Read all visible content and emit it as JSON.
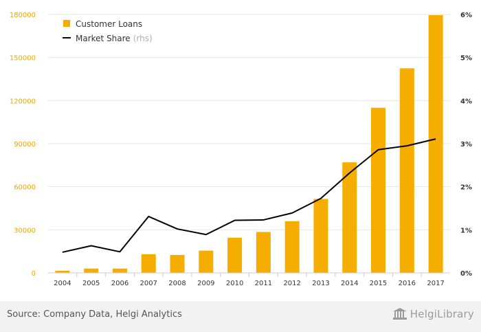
{
  "chart_data": {
    "type": "bar",
    "categories": [
      "2004",
      "2005",
      "2006",
      "2007",
      "2008",
      "2009",
      "2010",
      "2011",
      "2012",
      "2013",
      "2014",
      "2015",
      "2016",
      "2017"
    ],
    "series": [
      {
        "name": "Customer Loans",
        "type": "bar",
        "axis": "left",
        "color": "#f5ae00",
        "values": [
          1500,
          3000,
          3000,
          13000,
          12500,
          15500,
          24500,
          28500,
          36000,
          51500,
          77000,
          115000,
          142500,
          179500
        ]
      },
      {
        "name": "Market Share",
        "name_suffix": "(rhs)",
        "type": "line",
        "axis": "right",
        "color": "#000000",
        "values": [
          0.48,
          0.63,
          0.49,
          1.31,
          1.02,
          0.89,
          1.22,
          1.23,
          1.39,
          1.73,
          2.32,
          2.86,
          2.95,
          3.11
        ]
      }
    ],
    "yleft": {
      "lim": [
        0,
        180000
      ],
      "ticks": [
        "0",
        "30000",
        "60000",
        "90000",
        "120000",
        "150000",
        "180000"
      ]
    },
    "yright": {
      "lim": [
        0,
        6
      ],
      "ticks": [
        "0%",
        "1%",
        "2%",
        "3%",
        "4%",
        "5%",
        "6%"
      ]
    },
    "grid": true,
    "legend_position": "top-left"
  },
  "footer": {
    "source": "Source: Company Data, Helgi Analytics",
    "brand": "HelgiLibrary"
  },
  "colors": {
    "bar": "#f5ae00",
    "line": "#000000",
    "left_axis_text": "#f0a500",
    "footer_bg": "#f2f2f2"
  }
}
